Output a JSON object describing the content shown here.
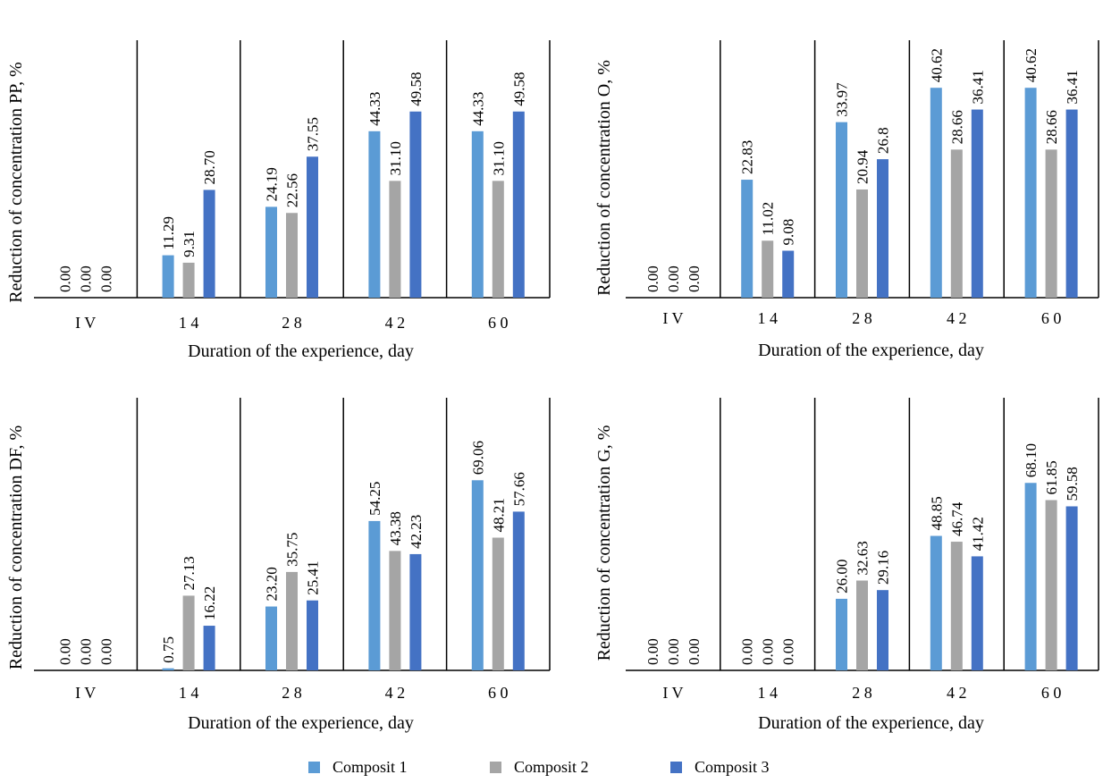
{
  "colors": {
    "Composit 1": "#5b9bd5",
    "Composit 2": "#a5a5a5",
    "Composit 3": "#4472c4"
  },
  "legend": [
    {
      "name": "Composit 1",
      "color": "#5b9bd5"
    },
    {
      "name": "Composit 2",
      "color": "#a5a5a5"
    },
    {
      "name": "Composit 3",
      "color": "#4472c4"
    }
  ],
  "chart_data": [
    {
      "type": "bar",
      "ylabel": "Reduction of concentration PP, %",
      "xlabel": "Duration of the experience, day",
      "categories": [
        "I V",
        "1 4",
        "2 8",
        "4 2",
        "6 0"
      ],
      "ylim": [
        0,
        60
      ],
      "series": [
        {
          "name": "Composit 1",
          "values": [
            0.0,
            11.29,
            24.19,
            44.33,
            44.33
          ],
          "labels": [
            "0.00",
            "11.29",
            "24.19",
            "44.33",
            "44.33"
          ]
        },
        {
          "name": "Composit 2",
          "values": [
            0.0,
            9.31,
            22.56,
            31.1,
            31.1
          ],
          "labels": [
            "0.00",
            "9.31",
            "22.56",
            "31.10",
            "31.10"
          ]
        },
        {
          "name": "Composit 3",
          "values": [
            0.0,
            28.7,
            37.55,
            49.58,
            49.58
          ],
          "labels": [
            "0.00",
            "28.70",
            "37.55",
            "49.58",
            "49.58"
          ]
        }
      ]
    },
    {
      "type": "bar",
      "ylabel": "Reduction of concentration O, %",
      "xlabel": "Duration of the experience, day",
      "categories": [
        "I V",
        "1 4",
        "2 8",
        "4 2",
        "6 0"
      ],
      "ylim": [
        0,
        50
      ],
      "series": [
        {
          "name": "Composit 1",
          "values": [
            0.0,
            22.83,
            33.97,
            40.62,
            40.62
          ],
          "labels": [
            "0.00",
            "22.83",
            "33.97",
            "40.62",
            "40.62"
          ]
        },
        {
          "name": "Composit 2",
          "values": [
            0.0,
            11.02,
            20.94,
            28.66,
            28.66
          ],
          "labels": [
            "0.00",
            "11.02",
            "20.94",
            "28.66",
            "28.66"
          ]
        },
        {
          "name": "Composit 3",
          "values": [
            0.0,
            9.08,
            26.8,
            36.41,
            36.41
          ],
          "labels": [
            "0.00",
            "9.08",
            "26.8",
            "36.41",
            "36.41"
          ]
        }
      ]
    },
    {
      "type": "bar",
      "ylabel": "Reduction of concentration DF, %",
      "xlabel": "Duration of the experience, day",
      "categories": [
        "I V",
        "1 4",
        "2 8",
        "4 2",
        "6 0"
      ],
      "ylim": [
        0,
        80
      ],
      "series": [
        {
          "name": "Composit 1",
          "values": [
            0.0,
            0.75,
            23.2,
            54.25,
            69.06
          ],
          "labels": [
            "0.00",
            "0.75",
            "23.20",
            "54.25",
            "69.06"
          ]
        },
        {
          "name": "Composit 2",
          "values": [
            0.0,
            27.13,
            35.75,
            43.38,
            48.21
          ],
          "labels": [
            "0.00",
            "27.13",
            "35.75",
            "43.38",
            "48.21"
          ]
        },
        {
          "name": "Composit 3",
          "values": [
            0.0,
            16.22,
            25.41,
            42.23,
            57.66
          ],
          "labels": [
            "0.00",
            "16.22",
            "25.41",
            "42.23",
            "57.66"
          ]
        }
      ]
    },
    {
      "type": "bar",
      "ylabel": "Reduction of concentration G, %",
      "xlabel": "Duration of the experience, day",
      "categories": [
        "I V",
        "1 4",
        "2 8",
        "4 2",
        "6 0"
      ],
      "ylim": [
        0,
        80
      ],
      "series": [
        {
          "name": "Composit 1",
          "values": [
            0.0,
            0.0,
            26.0,
            48.85,
            68.1
          ],
          "labels": [
            "0.00",
            "0.00",
            "26.00",
            "48.85",
            "68.10"
          ]
        },
        {
          "name": "Composit 2",
          "values": [
            0.0,
            0.0,
            32.63,
            46.74,
            61.85
          ],
          "labels": [
            "0.00",
            "0.00",
            "32.63",
            "46.74",
            "61.85"
          ]
        },
        {
          "name": "Composit 3",
          "values": [
            0.0,
            0.0,
            29.16,
            41.42,
            59.58
          ],
          "labels": [
            "0.00",
            "0.00",
            "29.16",
            "41.42",
            "59.58"
          ]
        }
      ]
    }
  ]
}
